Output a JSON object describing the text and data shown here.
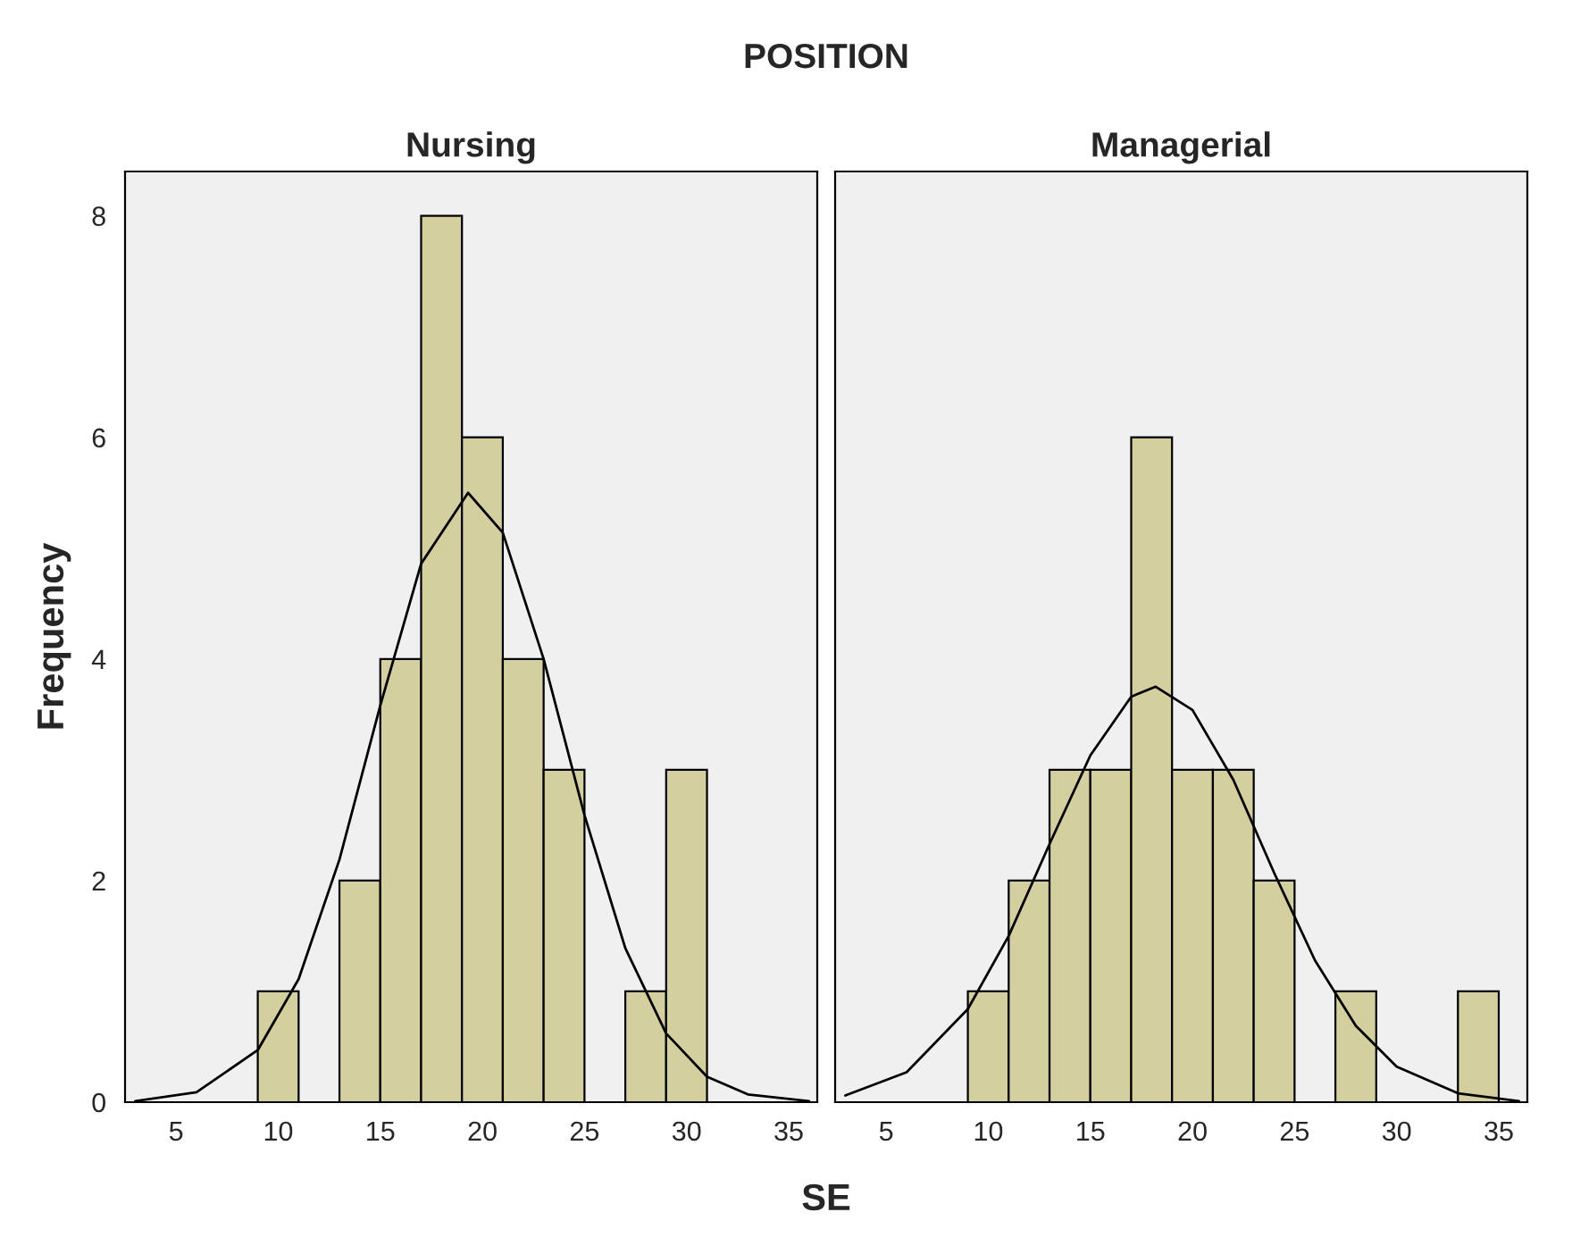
{
  "chart_data": [
    {
      "type": "histogram",
      "title": "Nursing",
      "ylabel": "Frequency",
      "xlabel": "SE",
      "annotations": [
        "POSITION"
      ],
      "bins": [
        9,
        11,
        13,
        15,
        17,
        19,
        21,
        23,
        25,
        27,
        29,
        31
      ],
      "values": [
        1,
        0,
        2,
        4,
        8,
        6,
        4,
        3,
        0,
        1,
        3
      ],
      "color": "#d4cf9f",
      "series": [
        {
          "type": "line",
          "color": "#000000",
          "x": [
            3,
            6,
            9,
            11,
            13,
            15,
            17,
            19.3,
            21,
            23,
            25,
            27,
            29,
            31,
            33,
            36
          ],
          "values": [
            0.01,
            0.09,
            0.47,
            1.11,
            2.19,
            3.58,
            4.86,
            5.5,
            5.14,
            4.0,
            2.59,
            1.39,
            0.62,
            0.23,
            0.07,
            0.01
          ]
        }
      ],
      "xlim": [
        2.5,
        36.4
      ],
      "ylim": [
        0,
        8.4
      ],
      "xticks": [
        5,
        10,
        15,
        20,
        25,
        30,
        35
      ],
      "yticks": [
        0,
        2,
        4,
        6,
        8
      ],
      "grid": false
    },
    {
      "type": "histogram",
      "title": "Managerial",
      "bins": [
        9,
        11,
        13,
        15,
        17,
        19,
        21,
        23,
        25,
        27,
        29,
        31,
        33,
        35
      ],
      "values": [
        1,
        2,
        3,
        3,
        6,
        3,
        3,
        2,
        0,
        1,
        0,
        0,
        1
      ],
      "color": "#d4cf9f",
      "series": [
        {
          "type": "line",
          "color": "#000000",
          "x": [
            3,
            6,
            9,
            11,
            13,
            15,
            17,
            18.2,
            20,
            22,
            24,
            26,
            28,
            30,
            33,
            36
          ],
          "values": [
            0.06,
            0.27,
            0.84,
            1.5,
            2.33,
            3.13,
            3.66,
            3.75,
            3.54,
            2.91,
            2.07,
            1.28,
            0.69,
            0.32,
            0.08,
            0.01
          ]
        }
      ],
      "xlim": [
        2.5,
        36.4
      ],
      "ylim": [
        0,
        8.4
      ],
      "xticks": [
        5,
        10,
        15,
        20,
        25,
        30,
        35
      ],
      "yticks": [
        0,
        2,
        4,
        6,
        8
      ],
      "tick_labels": "x",
      "grid": false
    }
  ]
}
